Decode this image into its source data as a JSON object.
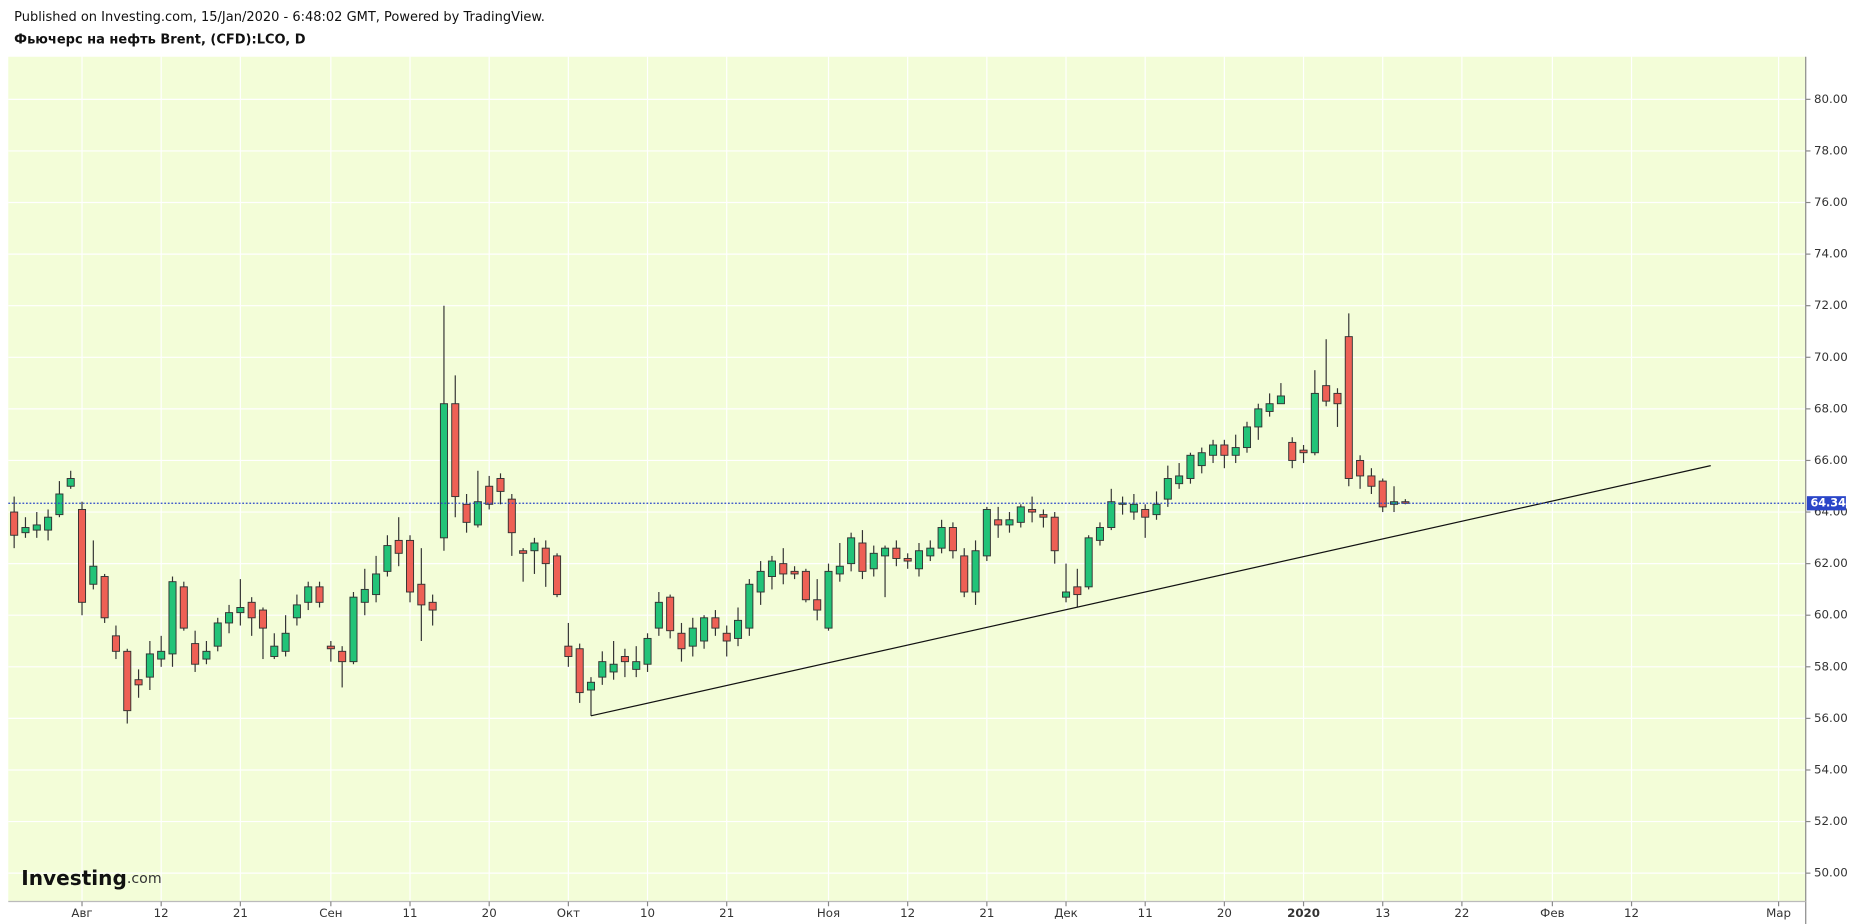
{
  "header": {
    "published": "Published on Investing.com, 15/Jan/2020 - 6:48:02 GMT, Powered by TradingView."
  },
  "logo": {
    "brand": "Investing",
    "suffix": ".com"
  },
  "chart_data": {
    "type": "candlestick",
    "title": "Фьючерс на нефть Brent, (CFD):LCO, D",
    "x": [
      0,
      1,
      2,
      3,
      4,
      5,
      6,
      7,
      8,
      9,
      10,
      11,
      12,
      13,
      14,
      15,
      16,
      17,
      18,
      19,
      20,
      21,
      22,
      23,
      24,
      25,
      26,
      27,
      28,
      29,
      30,
      31,
      32,
      33,
      34,
      35,
      36,
      37,
      38,
      39,
      40,
      41,
      42,
      43,
      44,
      45,
      46,
      47,
      48,
      49,
      50,
      51,
      52,
      53,
      54,
      55,
      56,
      57,
      58,
      59,
      60,
      61,
      62,
      63,
      64,
      65,
      66,
      67,
      68,
      69,
      70,
      71,
      72,
      73,
      74,
      75,
      76,
      77,
      78,
      79,
      80,
      81,
      82,
      83,
      84,
      85,
      86,
      87,
      88,
      89,
      90,
      91,
      92,
      93,
      94,
      95,
      96,
      97,
      98,
      99,
      100,
      101,
      102,
      103,
      104,
      105,
      106,
      107,
      108,
      109,
      110,
      111,
      112,
      113,
      114,
      115,
      116,
      117,
      118,
      119,
      120,
      121,
      122,
      123
    ],
    "open": [
      64.0,
      63.2,
      63.3,
      63.3,
      63.9,
      65.0,
      64.1,
      61.2,
      61.5,
      59.2,
      58.6,
      57.5,
      57.6,
      58.3,
      58.5,
      61.1,
      58.9,
      58.3,
      58.8,
      59.7,
      60.1,
      60.5,
      60.2,
      58.4,
      58.6,
      59.9,
      60.5,
      61.1,
      58.8,
      58.6,
      58.2,
      60.5,
      60.8,
      61.7,
      62.9,
      62.9,
      61.2,
      60.5,
      63.0,
      68.2,
      64.3,
      63.5,
      65.0,
      65.3,
      64.5,
      62.5,
      62.5,
      62.6,
      62.3,
      58.8,
      58.7,
      57.1,
      57.6,
      57.8,
      58.4,
      57.9,
      58.1,
      59.5,
      60.7,
      59.3,
      58.8,
      59.0,
      59.9,
      59.3,
      59.1,
      59.5,
      60.9,
      61.5,
      62.0,
      61.7,
      61.7,
      60.6,
      59.5,
      61.6,
      62.0,
      62.8,
      61.8,
      62.3,
      62.6,
      62.2,
      61.8,
      62.3,
      62.6,
      63.4,
      62.3,
      60.9,
      62.3,
      63.7,
      63.5,
      63.6,
      64.1,
      63.9,
      63.8,
      60.7,
      61.1,
      61.1,
      62.9,
      63.4,
      64.3,
      64.0,
      64.1,
      63.9,
      64.5,
      65.1,
      65.3,
      65.8,
      66.2,
      66.6,
      66.2,
      66.5,
      67.3,
      67.9,
      68.2,
      66.7,
      66.4,
      66.3,
      68.9,
      68.6,
      70.8,
      66.0,
      65.4,
      65.2,
      64.3,
      64.4
    ],
    "high": [
      64.6,
      63.8,
      64.0,
      64.1,
      65.2,
      65.6,
      64.4,
      62.9,
      61.6,
      59.6,
      58.7,
      57.9,
      59.0,
      59.2,
      61.5,
      61.3,
      59.4,
      59.0,
      59.9,
      60.4,
      61.4,
      60.7,
      60.3,
      59.3,
      60.0,
      60.8,
      61.3,
      61.3,
      59.0,
      58.8,
      60.9,
      61.8,
      62.3,
      63.1,
      63.8,
      63.1,
      62.6,
      60.8,
      72.0,
      69.3,
      64.7,
      65.6,
      65.4,
      65.5,
      64.7,
      62.6,
      63.0,
      62.9,
      62.4,
      59.7,
      58.9,
      57.6,
      58.6,
      59.0,
      58.7,
      58.8,
      59.3,
      60.9,
      60.8,
      59.7,
      59.9,
      60.0,
      60.2,
      59.6,
      60.3,
      61.4,
      62.1,
      62.3,
      62.6,
      61.9,
      61.8,
      61.4,
      62.0,
      62.8,
      63.2,
      63.3,
      62.7,
      62.7,
      62.9,
      62.4,
      62.8,
      62.9,
      63.7,
      63.6,
      62.6,
      62.9,
      64.2,
      64.2,
      64.0,
      64.3,
      64.6,
      64.1,
      64.0,
      62.0,
      61.8,
      63.1,
      63.6,
      64.9,
      64.6,
      64.7,
      64.3,
      64.8,
      65.8,
      65.9,
      66.3,
      66.5,
      66.8,
      66.8,
      67.0,
      67.5,
      68.2,
      68.6,
      69.0,
      66.9,
      66.6,
      69.5,
      70.7,
      68.8,
      71.7,
      66.2,
      65.7,
      65.3,
      65.0,
      64.5
    ],
    "low": [
      62.6,
      63.0,
      63.0,
      62.9,
      63.8,
      64.9,
      60.0,
      61.0,
      59.7,
      58.3,
      55.8,
      56.8,
      57.1,
      58.0,
      58.0,
      59.4,
      57.8,
      58.1,
      58.6,
      59.3,
      59.6,
      59.2,
      58.3,
      58.3,
      58.4,
      59.6,
      60.2,
      60.3,
      58.2,
      57.2,
      58.1,
      60.0,
      60.5,
      61.5,
      61.9,
      60.5,
      59.0,
      59.6,
      62.5,
      63.8,
      63.2,
      63.4,
      64.1,
      64.3,
      62.3,
      61.3,
      61.6,
      61.1,
      60.7,
      58.0,
      56.6,
      56.1,
      57.3,
      57.5,
      57.6,
      57.6,
      57.8,
      59.2,
      59.1,
      58.2,
      58.4,
      58.7,
      59.2,
      58.4,
      58.8,
      59.2,
      60.4,
      61.0,
      61.2,
      61.4,
      60.5,
      59.8,
      59.4,
      61.3,
      61.7,
      61.4,
      61.5,
      60.7,
      61.9,
      61.8,
      61.5,
      62.1,
      62.4,
      62.2,
      60.7,
      60.4,
      62.1,
      63.0,
      63.2,
      63.4,
      63.6,
      63.4,
      62.0,
      60.5,
      60.3,
      61.0,
      62.7,
      63.3,
      63.9,
      63.7,
      63.0,
      63.7,
      64.2,
      64.9,
      65.1,
      65.5,
      65.9,
      65.7,
      65.9,
      66.3,
      66.8,
      67.7,
      68.2,
      65.7,
      65.9,
      66.2,
      68.1,
      67.3,
      65.0,
      64.9,
      64.7,
      64.0,
      64.0,
      64.3
    ],
    "close": [
      63.1,
      63.4,
      63.5,
      63.8,
      64.7,
      65.3,
      60.5,
      61.9,
      59.9,
      58.6,
      56.3,
      57.3,
      58.5,
      58.6,
      61.3,
      59.5,
      58.1,
      58.6,
      59.7,
      60.1,
      60.3,
      59.9,
      59.5,
      58.8,
      59.3,
      60.4,
      61.1,
      60.5,
      58.7,
      58.2,
      60.7,
      61.0,
      61.6,
      62.7,
      62.4,
      60.9,
      60.4,
      60.2,
      68.2,
      64.6,
      63.6,
      64.4,
      64.3,
      64.8,
      63.2,
      62.4,
      62.8,
      62.0,
      60.8,
      58.4,
      57.0,
      57.4,
      58.2,
      58.1,
      58.2,
      58.2,
      59.1,
      60.5,
      59.4,
      58.7,
      59.5,
      59.9,
      59.5,
      59.0,
      59.8,
      61.2,
      61.7,
      62.1,
      61.6,
      61.6,
      60.6,
      60.2,
      61.7,
      61.9,
      63.0,
      61.7,
      62.4,
      62.6,
      62.2,
      62.1,
      62.5,
      62.6,
      63.4,
      62.5,
      60.9,
      62.5,
      64.1,
      63.5,
      63.7,
      64.2,
      64.0,
      63.8,
      62.5,
      60.9,
      60.8,
      63.0,
      63.4,
      64.4,
      64.35,
      64.3,
      63.8,
      64.3,
      65.3,
      65.4,
      66.2,
      66.3,
      66.6,
      66.2,
      66.5,
      67.3,
      68.0,
      68.2,
      68.5,
      66.0,
      66.3,
      68.6,
      68.3,
      68.2,
      65.3,
      65.4,
      65.0,
      64.2,
      64.4,
      64.34
    ],
    "up_color": "#22c378",
    "down_color": "#ee6055",
    "xlim": [
      -0.52,
      158.4
    ],
    "ylim": [
      48.9,
      81.65
    ],
    "xticks": [
      {
        "value": 6,
        "label": "Авг"
      },
      {
        "value": 13,
        "label": "12"
      },
      {
        "value": 20,
        "label": "21"
      },
      {
        "value": 28,
        "label": "Сен"
      },
      {
        "value": 35,
        "label": "11"
      },
      {
        "value": 42,
        "label": "20"
      },
      {
        "value": 49,
        "label": "Окт"
      },
      {
        "value": 56,
        "label": "10"
      },
      {
        "value": 63,
        "label": "21"
      },
      {
        "value": 72,
        "label": "Ноя"
      },
      {
        "value": 79,
        "label": "12"
      },
      {
        "value": 86,
        "label": "21"
      },
      {
        "value": 93,
        "label": "Дек"
      },
      {
        "value": 100,
        "label": "11"
      },
      {
        "value": 107,
        "label": "20"
      },
      {
        "value": 114,
        "label": "2020"
      },
      {
        "value": 121,
        "label": "13"
      },
      {
        "value": 128,
        "label": "22"
      },
      {
        "value": 136,
        "label": "Фев"
      },
      {
        "value": 143,
        "label": "12"
      },
      {
        "value": 156,
        "label": "Мар"
      }
    ],
    "yticks": [
      {
        "value": 50,
        "label": "50.00"
      },
      {
        "value": 52,
        "label": "52.00"
      },
      {
        "value": 54,
        "label": "54.00"
      },
      {
        "value": 56,
        "label": "56.00"
      },
      {
        "value": 58,
        "label": "58.00"
      },
      {
        "value": 60,
        "label": "60.00"
      },
      {
        "value": 62,
        "label": "62.00"
      },
      {
        "value": 64,
        "label": "64.00"
      },
      {
        "value": 66,
        "label": "66.00"
      },
      {
        "value": 68,
        "label": "68.00"
      },
      {
        "value": 70,
        "label": "70.00"
      },
      {
        "value": 72,
        "label": "72.00"
      },
      {
        "value": 74,
        "label": "74.00"
      },
      {
        "value": 76,
        "label": "76.00"
      },
      {
        "value": 78,
        "label": "78.00"
      },
      {
        "value": 80,
        "label": "80.00"
      }
    ],
    "last_price": {
      "value": 64.34,
      "label": "64.34",
      "color": "#2a45c8"
    },
    "trendline": {
      "x": [
        51,
        150
      ],
      "y": [
        56.1,
        65.8
      ],
      "color": "#111111"
    },
    "grid": true
  }
}
